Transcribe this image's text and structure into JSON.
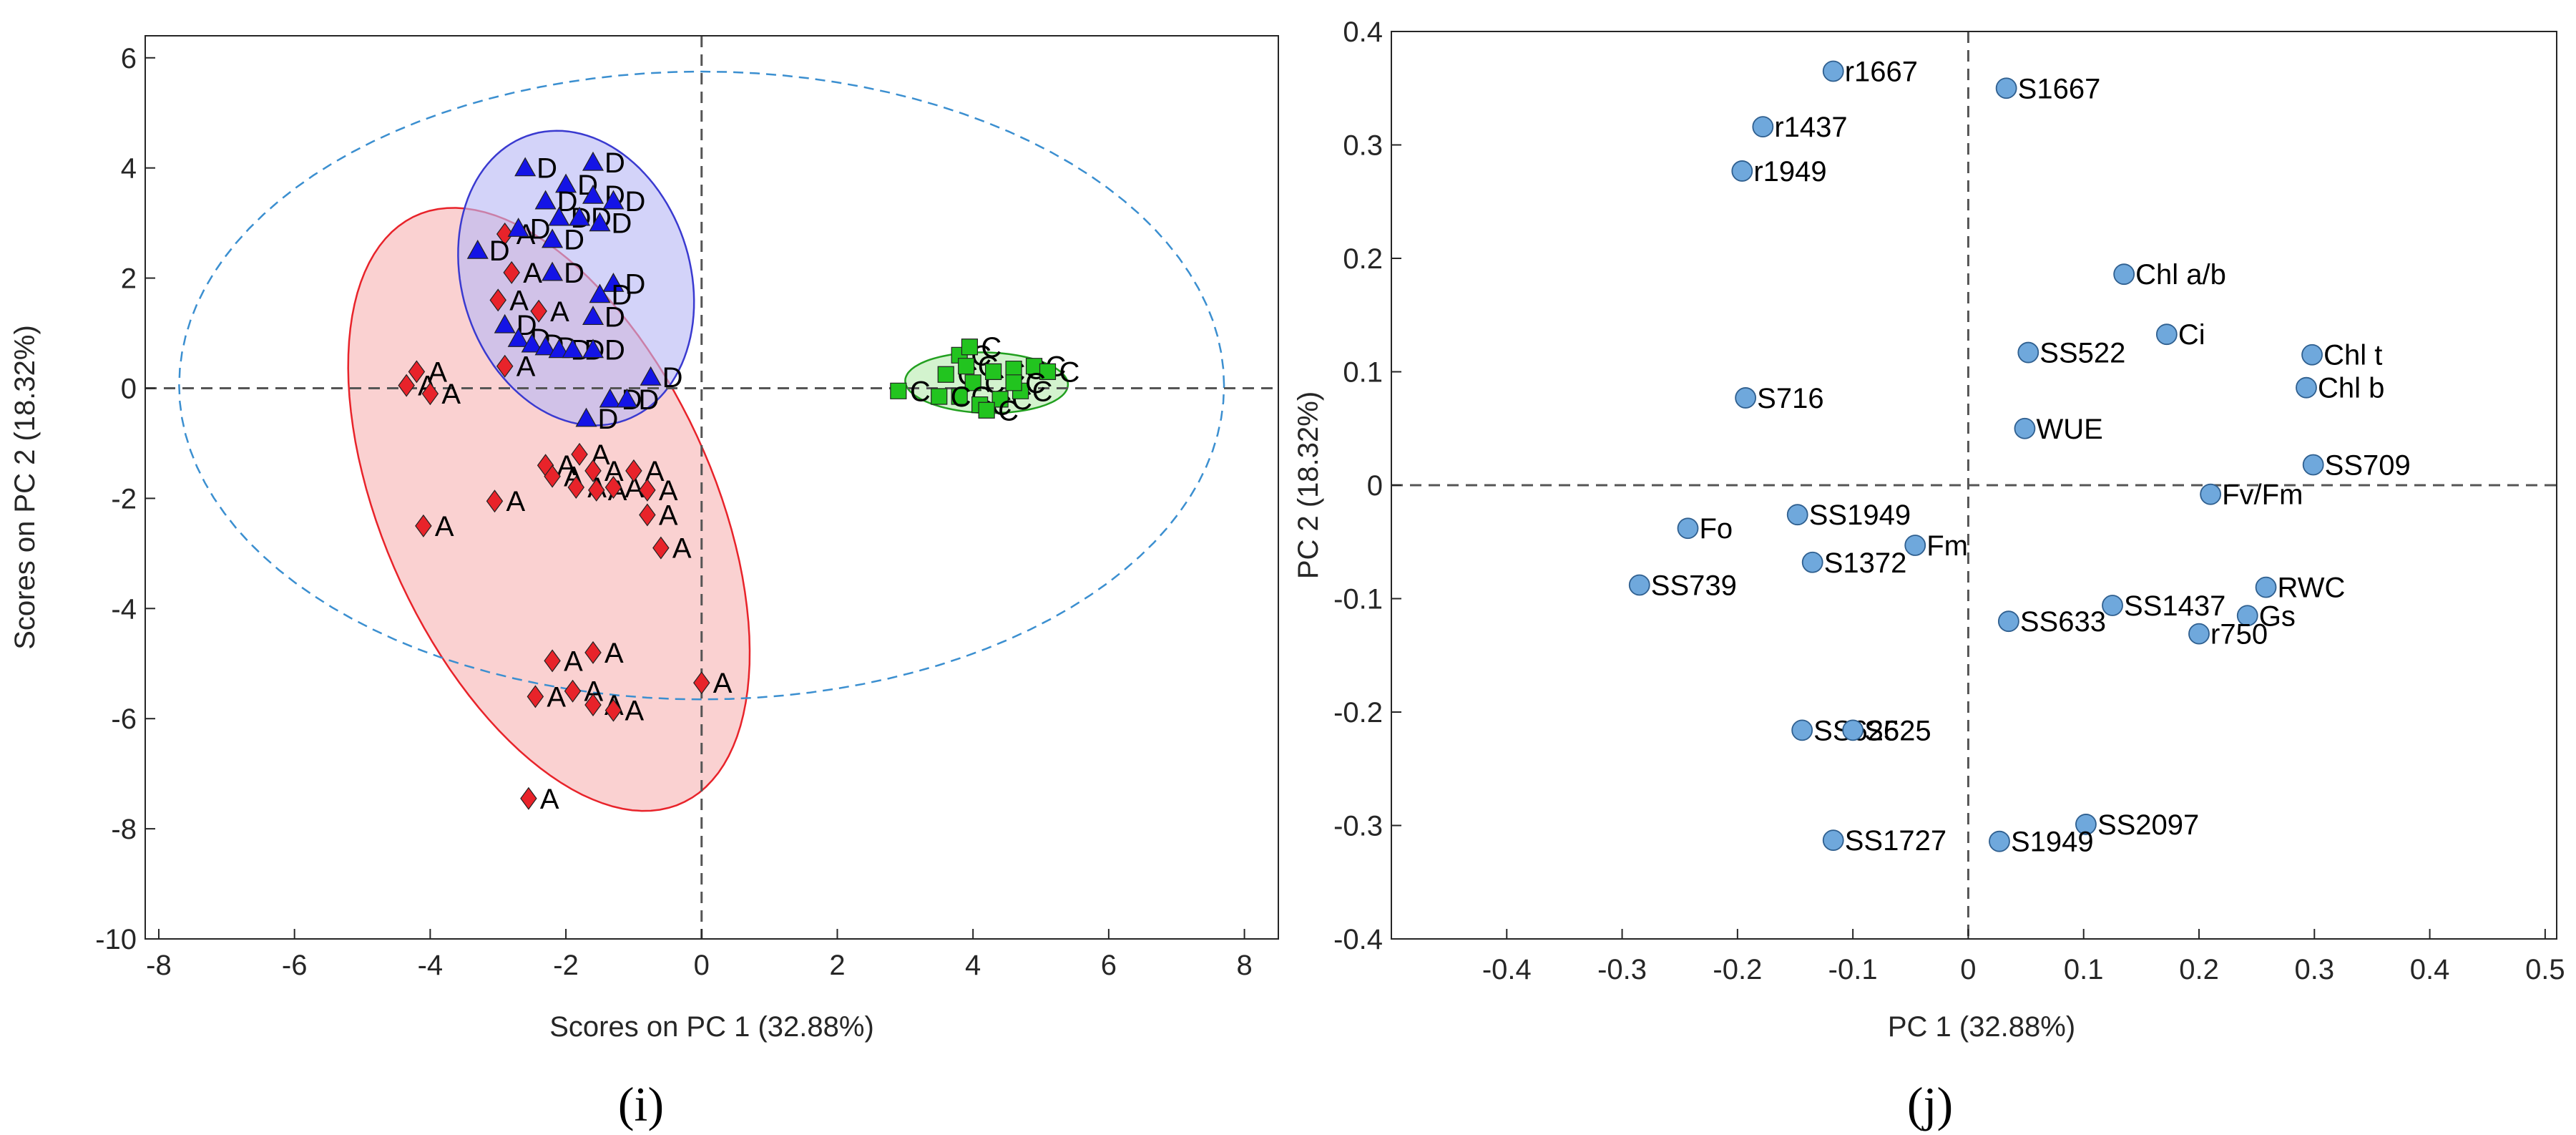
{
  "panels": {
    "left_label": "(i)",
    "right_label": "(j)"
  },
  "chart_data": [
    {
      "type": "scatter",
      "title": "",
      "xlabel": "Scores on PC 1 (32.88%)",
      "ylabel": "Scores on PC 2 (18.32%)",
      "xlim": [
        -8.2,
        8.5
      ],
      "ylim": [
        -10,
        6.4
      ],
      "xticks": [
        -8,
        -6,
        -4,
        -2,
        0,
        2,
        4,
        6,
        8
      ],
      "yticks": [
        6,
        4,
        2,
        0,
        -2,
        -4,
        -6,
        -8,
        -10
      ],
      "grid": false,
      "colors": {
        "A": "#e8232a",
        "D": "#1414e6",
        "C": "#22c41f",
        "ellipse_dash": "#3b8fd0",
        "zero_line": "#555555"
      },
      "ellipses": [
        {
          "group": "A",
          "cx": -2.25,
          "cy": -2.2,
          "rx": 5.7,
          "ry": 2.5,
          "angle_deg": -72,
          "fill": "#f7b5b5",
          "stroke": "#e8232a"
        },
        {
          "group": "D",
          "cx": -1.85,
          "cy": 2.0,
          "rx": 2.7,
          "ry": 1.7,
          "angle_deg": -80,
          "fill": "#b8b8f5",
          "stroke": "#3a3ad0"
        },
        {
          "group": "C",
          "cx": 4.2,
          "cy": 0.1,
          "rx": 1.2,
          "ry": 0.55,
          "angle_deg": -2,
          "fill": "#b8ecb0",
          "stroke": "#22a020"
        },
        {
          "group": "all",
          "cx": 0,
          "cy": 0.05,
          "rx": 7.7,
          "ry": 5.7,
          "angle_deg": 0,
          "fill": "none",
          "stroke": "#3b8fd0",
          "dashed": true
        }
      ],
      "series": [
        {
          "name": "A",
          "marker": "diamond",
          "points": [
            [
              -2.9,
              2.8
            ],
            [
              -2.8,
              2.1
            ],
            [
              -3.0,
              1.6
            ],
            [
              -2.4,
              1.4
            ],
            [
              -2.9,
              0.4
            ],
            [
              -4.2,
              0.3
            ],
            [
              -4.35,
              0.05
            ],
            [
              -4.0,
              -0.1
            ],
            [
              -2.3,
              -1.4
            ],
            [
              -2.2,
              -1.6
            ],
            [
              -1.8,
              -1.2
            ],
            [
              -1.6,
              -1.5
            ],
            [
              -1.85,
              -1.8
            ],
            [
              -1.55,
              -1.85
            ],
            [
              -1.3,
              -1.8
            ],
            [
              -1.0,
              -1.5
            ],
            [
              -0.8,
              -1.85
            ],
            [
              -0.8,
              -2.3
            ],
            [
              -0.6,
              -2.9
            ],
            [
              -3.05,
              -2.05
            ],
            [
              -4.1,
              -2.5
            ],
            [
              -1.6,
              -4.8
            ],
            [
              -2.2,
              -4.95
            ],
            [
              -2.45,
              -5.6
            ],
            [
              -1.9,
              -5.5
            ],
            [
              -1.6,
              -5.75
            ],
            [
              -1.3,
              -5.85
            ],
            [
              0.0,
              -5.35
            ],
            [
              -2.55,
              -7.45
            ]
          ],
          "label": "A"
        },
        {
          "name": "D",
          "marker": "triangle",
          "points": [
            [
              -2.6,
              4.0
            ],
            [
              -2.0,
              3.7
            ],
            [
              -1.6,
              3.5
            ],
            [
              -1.3,
              3.4
            ],
            [
              -1.6,
              4.1
            ],
            [
              -2.3,
              3.4
            ],
            [
              -2.1,
              3.1
            ],
            [
              -1.8,
              3.1
            ],
            [
              -1.5,
              3.0
            ],
            [
              -2.7,
              2.9
            ],
            [
              -3.3,
              2.5
            ],
            [
              -2.2,
              2.7
            ],
            [
              -2.2,
              2.1
            ],
            [
              -1.3,
              1.9
            ],
            [
              -1.5,
              1.7
            ],
            [
              -1.6,
              1.3
            ],
            [
              -2.9,
              1.15
            ],
            [
              -2.7,
              0.9
            ],
            [
              -2.5,
              0.8
            ],
            [
              -2.3,
              0.75
            ],
            [
              -2.1,
              0.7
            ],
            [
              -1.9,
              0.7
            ],
            [
              -1.6,
              0.7
            ],
            [
              -0.75,
              0.2
            ],
            [
              -1.35,
              -0.2
            ],
            [
              -1.1,
              -0.2
            ],
            [
              -1.7,
              -0.55
            ]
          ],
          "label": "D"
        },
        {
          "name": "C",
          "marker": "square",
          "points": [
            [
              2.9,
              -0.05
            ],
            [
              3.6,
              0.25
            ],
            [
              3.8,
              0.6
            ],
            [
              3.9,
              0.4
            ],
            [
              4.0,
              0.1
            ],
            [
              4.3,
              0.3
            ],
            [
              4.6,
              0.35
            ],
            [
              4.9,
              0.4
            ],
            [
              5.1,
              0.3
            ],
            [
              3.8,
              -0.15
            ],
            [
              4.1,
              -0.3
            ],
            [
              4.4,
              -0.2
            ],
            [
              4.7,
              -0.05
            ],
            [
              3.5,
              -0.15
            ],
            [
              3.95,
              0.75
            ],
            [
              4.6,
              0.1
            ],
            [
              4.2,
              -0.4
            ]
          ],
          "label": "C"
        }
      ]
    },
    {
      "type": "scatter",
      "title": "",
      "xlabel": "PC 1 (32.88%)",
      "ylabel": "PC 2 (18.32%)",
      "xlim": [
        -0.5,
        0.51
      ],
      "ylim": [
        -0.4,
        0.4
      ],
      "xticks": [
        -0.4,
        -0.3,
        -0.2,
        -0.1,
        0,
        0.1,
        0.2,
        0.3,
        0.4,
        0.5
      ],
      "xtick_labels": [
        "-0.4",
        "-0.3",
        "-0.2",
        "-0.1",
        "0",
        "0.1",
        "0.2",
        "0.3",
        "0.4",
        "0.5"
      ],
      "yticks": [
        0.4,
        0.3,
        0.2,
        0.1,
        0,
        -0.1,
        -0.2,
        -0.3,
        -0.4
      ],
      "ytick_labels": [
        "0.4",
        "0.3",
        "0.2",
        "0.1",
        "0",
        "-0.1",
        "-0.2",
        "-0.3",
        "-0.4"
      ],
      "grid": false,
      "colors": {
        "marker_fill": "#6fa8dc",
        "marker_stroke": "#2f5f8f",
        "zero_line": "#555555"
      },
      "points": [
        {
          "label": "r1667",
          "x": -0.117,
          "y": 0.365
        },
        {
          "label": "S1667",
          "x": 0.033,
          "y": 0.35
        },
        {
          "label": "r1437",
          "x": -0.178,
          "y": 0.316
        },
        {
          "label": "r1949",
          "x": -0.196,
          "y": 0.277
        },
        {
          "label": "Chl a/b",
          "x": 0.135,
          "y": 0.186
        },
        {
          "label": "Ci",
          "x": 0.172,
          "y": 0.133
        },
        {
          "label": "SS522",
          "x": 0.052,
          "y": 0.117
        },
        {
          "label": "Chl t",
          "x": 0.298,
          "y": 0.115
        },
        {
          "label": "Chl b",
          "x": 0.293,
          "y": 0.086
        },
        {
          "label": "S716",
          "x": -0.193,
          "y": 0.077
        },
        {
          "label": "WUE",
          "x": 0.049,
          "y": 0.05
        },
        {
          "label": "SS709",
          "x": 0.299,
          "y": 0.018
        },
        {
          "label": "Fv/Fm",
          "x": 0.21,
          "y": -0.008
        },
        {
          "label": "SS1949",
          "x": -0.148,
          "y": -0.026
        },
        {
          "label": "Fo",
          "x": -0.243,
          "y": -0.038
        },
        {
          "label": "Fm",
          "x": -0.046,
          "y": -0.053
        },
        {
          "label": "S1372",
          "x": -0.135,
          "y": -0.068
        },
        {
          "label": "SS739",
          "x": -0.285,
          "y": -0.088
        },
        {
          "label": "RWC",
          "x": 0.258,
          "y": -0.09
        },
        {
          "label": "SS1437",
          "x": 0.125,
          "y": -0.106
        },
        {
          "label": "Gs",
          "x": 0.242,
          "y": -0.115
        },
        {
          "label": "SS633",
          "x": 0.035,
          "y": -0.12
        },
        {
          "label": "r750",
          "x": 0.2,
          "y": -0.131
        },
        {
          "label": "SS625",
          "x": -0.144,
          "y": -0.216
        },
        {
          "label": "S625",
          "x": -0.1,
          "y": -0.216
        },
        {
          "label": "SS2097",
          "x": 0.102,
          "y": -0.299
        },
        {
          "label": "SS1727",
          "x": -0.117,
          "y": -0.313
        },
        {
          "label": "S1949",
          "x": 0.027,
          "y": -0.314
        }
      ]
    }
  ]
}
